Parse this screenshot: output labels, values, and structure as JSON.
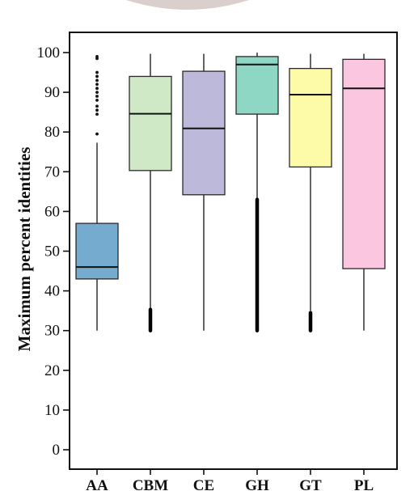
{
  "chart_data": {
    "type": "box",
    "title": "",
    "xlabel": "",
    "ylabel": "Maximum percent identities",
    "ylim": [
      -3,
      105
    ],
    "yticks": [
      0,
      10,
      20,
      30,
      40,
      50,
      60,
      70,
      80,
      90,
      100
    ],
    "grid": false,
    "categories": [
      "AA",
      "CBM",
      "CE",
      "GH",
      "GT",
      "PL"
    ],
    "series": [
      {
        "category": "AA",
        "whisker_low": 30,
        "q1": 43,
        "median": 46,
        "q3": 57,
        "whisker_high": 77.3,
        "color": "#76abd0",
        "outliers": [
          79.5,
          84.5,
          85.5,
          86.5,
          88,
          89,
          90,
          91,
          92,
          93,
          94,
          95,
          98.5,
          99
        ]
      },
      {
        "category": "CBM",
        "whisker_low": 30,
        "q1": 70.3,
        "median": 84.6,
        "q3": 94,
        "whisker_high": 99.7,
        "color": "#cfe9c7",
        "outlier_band": [
          30,
          35.3
        ]
      },
      {
        "category": "CE",
        "whisker_low": 30,
        "q1": 64.2,
        "median": 80.9,
        "q3": 95.3,
        "whisker_high": 99.7,
        "color": "#bcb9db",
        "outliers": []
      },
      {
        "category": "GH",
        "whisker_low": 63.1,
        "q1": 84.5,
        "median": 97,
        "q3": 99,
        "whisker_high": 100,
        "color": "#8ed7c5",
        "outlier_band": [
          30,
          63
        ]
      },
      {
        "category": "GT",
        "whisker_low": 35,
        "q1": 71.2,
        "median": 89.4,
        "q3": 96,
        "whisker_high": 99.7,
        "color": "#fdfaa8",
        "outlier_band": [
          30,
          34.5
        ]
      },
      {
        "category": "PL",
        "whisker_low": 30,
        "q1": 45.6,
        "median": 91,
        "q3": 98.3,
        "whisker_high": 99.7,
        "color": "#fbc6e0",
        "outliers": []
      }
    ]
  }
}
